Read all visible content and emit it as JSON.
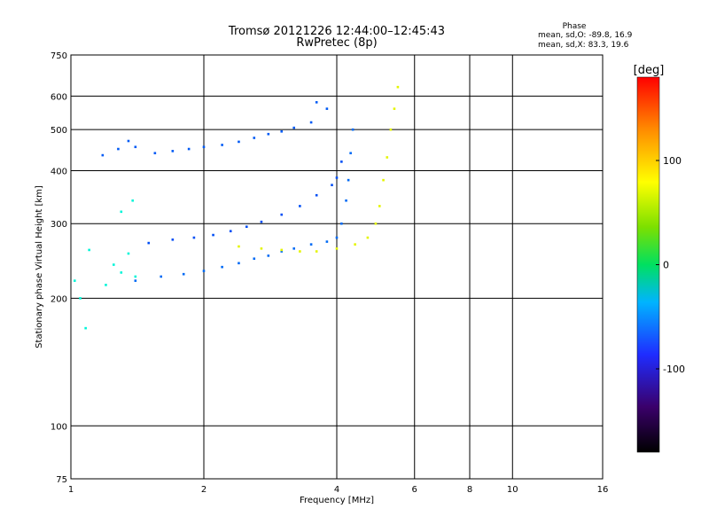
{
  "chart_data": {
    "type": "scatter",
    "title": "Tromsø 20121226 12:44:00–12:45:43",
    "subtitle": "RwPretec (8p)",
    "stats_title": "Phase",
    "stats_lines": [
      "mean, sd,O: -89.8, 16.9",
      "mean, sd,X:  83.3, 19.6"
    ],
    "xlabel": "Frequency [MHz]",
    "ylabel": "Stationary phase Virtual Height [km]",
    "x_scale": "log2",
    "y_scale": "log",
    "xlim": [
      1,
      16
    ],
    "ylim": [
      75,
      750
    ],
    "x_ticks": [
      1,
      2,
      4,
      6,
      8,
      10,
      16
    ],
    "x_tick_labels": [
      "1",
      "2",
      "4",
      "6",
      "8",
      "10",
      "16"
    ],
    "y_ticks": [
      75,
      100,
      200,
      300,
      400,
      500,
      600,
      750
    ],
    "y_tick_labels": [
      "75",
      "100",
      "200",
      "300",
      "400",
      "500",
      "600",
      "750"
    ],
    "colorbar": {
      "label": "[deg]",
      "range": [
        -180,
        180
      ],
      "ticks": [
        100,
        0,
        -100
      ],
      "tick_labels": [
        "100",
        "0",
        "-100"
      ]
    },
    "grid": true,
    "series": [
      {
        "trace": "upper-F-layer",
        "points": [
          [
            1.18,
            435
          ],
          [
            1.28,
            450
          ],
          [
            1.35,
            470
          ],
          [
            1.4,
            455
          ],
          [
            1.55,
            440
          ],
          [
            1.7,
            445
          ],
          [
            1.85,
            450
          ],
          [
            2.0,
            455
          ],
          [
            2.2,
            460
          ],
          [
            2.4,
            468
          ],
          [
            2.6,
            478
          ],
          [
            2.8,
            488
          ],
          [
            3.0,
            495
          ],
          [
            3.2,
            505
          ],
          [
            3.5,
            520
          ],
          [
            3.6,
            580
          ],
          [
            3.8,
            560
          ]
        ],
        "phase": -110
      },
      {
        "trace": "middle-F-layer",
        "points": [
          [
            1.5,
            270
          ],
          [
            1.7,
            275
          ],
          [
            1.9,
            278
          ],
          [
            2.1,
            282
          ],
          [
            2.3,
            288
          ],
          [
            2.5,
            295
          ],
          [
            2.7,
            303
          ],
          [
            3.0,
            315
          ],
          [
            3.3,
            330
          ],
          [
            3.6,
            350
          ],
          [
            3.9,
            370
          ],
          [
            4.0,
            385
          ],
          [
            4.1,
            420
          ]
        ],
        "phase": -115
      },
      {
        "trace": "lower-F-layer-O",
        "points": [
          [
            1.4,
            220
          ],
          [
            1.6,
            225
          ],
          [
            1.8,
            228
          ],
          [
            2.0,
            232
          ],
          [
            2.2,
            237
          ],
          [
            2.4,
            242
          ],
          [
            2.6,
            248
          ],
          [
            2.8,
            252
          ],
          [
            3.0,
            258
          ],
          [
            3.2,
            262
          ],
          [
            3.5,
            268
          ],
          [
            3.8,
            272
          ],
          [
            4.0,
            278
          ],
          [
            4.1,
            300
          ],
          [
            4.2,
            340
          ],
          [
            4.25,
            380
          ],
          [
            4.3,
            440
          ],
          [
            4.35,
            500
          ]
        ],
        "phase": -105
      },
      {
        "trace": "lower-F-layer-X",
        "points": [
          [
            2.4,
            265
          ],
          [
            2.7,
            262
          ],
          [
            3.0,
            260
          ],
          [
            3.3,
            258
          ],
          [
            3.6,
            258
          ],
          [
            4.0,
            262
          ],
          [
            4.4,
            268
          ],
          [
            4.7,
            278
          ],
          [
            4.9,
            300
          ],
          [
            5.0,
            330
          ],
          [
            5.1,
            380
          ],
          [
            5.2,
            430
          ],
          [
            5.3,
            500
          ],
          [
            5.4,
            560
          ],
          [
            5.5,
            630
          ]
        ],
        "phase": 95
      },
      {
        "trace": "low-frequency-cluster",
        "points": [
          [
            1.02,
            220
          ],
          [
            1.05,
            200
          ],
          [
            1.08,
            170
          ],
          [
            1.1,
            260
          ],
          [
            1.2,
            215
          ],
          [
            1.25,
            240
          ],
          [
            1.3,
            230
          ],
          [
            1.35,
            255
          ],
          [
            1.4,
            225
          ],
          [
            1.3,
            320
          ],
          [
            1.38,
            340
          ]
        ],
        "phase": -50
      }
    ]
  }
}
